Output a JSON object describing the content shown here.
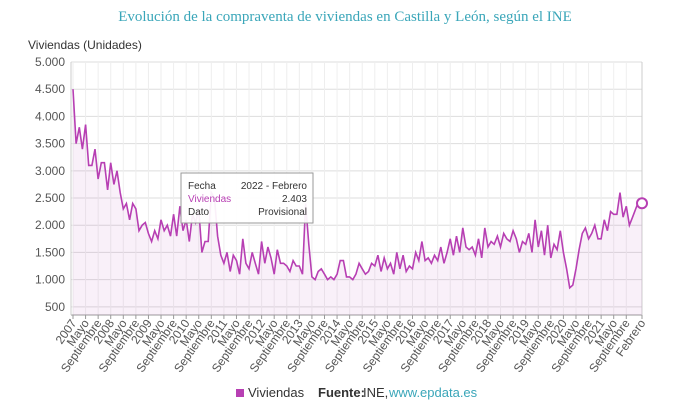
{
  "chart_data": {
    "type": "line",
    "title": "Evolución de la compraventa de viviendas en Castilla y León, según el INE",
    "y_label": "Viviendas (Unidades)",
    "categories": [
      "2007",
      null,
      null,
      null,
      "Mayo",
      null,
      null,
      null,
      "Septiembre",
      null,
      null,
      null,
      "2008",
      null,
      null,
      null,
      "Mayo",
      null,
      null,
      null,
      "Septiembre",
      null,
      null,
      null,
      "2009",
      null,
      null,
      null,
      "Mayo",
      null,
      null,
      null,
      "Septiembre",
      null,
      null,
      null,
      "2010",
      null,
      null,
      null,
      "Mayo",
      null,
      null,
      null,
      "Septiembre",
      null,
      null,
      null,
      "2011",
      null,
      null,
      null,
      "Mayo",
      null,
      null,
      null,
      "Septiembre",
      null,
      null,
      null,
      "2012",
      null,
      null,
      null,
      "Mayo",
      null,
      null,
      null,
      "Septiembre",
      null,
      null,
      null,
      "2013",
      null,
      null,
      null,
      "Mayo",
      null,
      null,
      null,
      "Septiembre",
      null,
      null,
      null,
      "2014",
      null,
      null,
      null,
      "Mayo",
      null,
      null,
      null,
      "Septiembre",
      null,
      null,
      null,
      "2015",
      null,
      null,
      null,
      "Mayo",
      null,
      null,
      null,
      "Septiembre",
      null,
      null,
      null,
      "2016",
      null,
      null,
      null,
      "Mayo",
      null,
      null,
      null,
      "Septiembre",
      null,
      null,
      null,
      "2017",
      null,
      null,
      null,
      "Mayo",
      null,
      null,
      null,
      "Septiembre",
      null,
      null,
      null,
      "2018",
      null,
      null,
      null,
      "Mayo",
      null,
      null,
      null,
      "Septiembre",
      null,
      null,
      null,
      "2019",
      null,
      null,
      null,
      "Mayo",
      null,
      null,
      null,
      "Septiembre",
      null,
      null,
      null,
      "2020",
      null,
      null,
      null,
      "Mayo",
      null,
      null,
      null,
      "Septiembre",
      null,
      null,
      null,
      "2021",
      null,
      null,
      null,
      "Mayo",
      null,
      null,
      null,
      "Septiembre",
      null,
      null,
      null,
      null,
      "Febrero"
    ],
    "series": [
      {
        "name": "Viviendas",
        "color": "#b73fb3",
        "values": [
          4500,
          3500,
          3800,
          3400,
          3850,
          3100,
          3100,
          3400,
          2850,
          3150,
          3150,
          2650,
          3150,
          2750,
          3000,
          2600,
          2300,
          2400,
          2100,
          2400,
          2300,
          1900,
          2000,
          2050,
          1850,
          1700,
          1900,
          1750,
          2100,
          1900,
          2000,
          1800,
          2200,
          1800,
          2350,
          1900,
          2100,
          1700,
          2200,
          2050,
          2300,
          1500,
          1700,
          1700,
          2600,
          2500,
          1800,
          1450,
          1300,
          1500,
          1150,
          1450,
          1350,
          1100,
          1750,
          1300,
          1200,
          1500,
          1300,
          1100,
          1700,
          1300,
          1600,
          1400,
          1100,
          1550,
          1300,
          1300,
          1250,
          1150,
          1350,
          1250,
          1250,
          1100,
          2400,
          1650,
          1050,
          1000,
          1150,
          1200,
          1100,
          1000,
          1050,
          1000,
          1100,
          1350,
          1350,
          1050,
          1050,
          1000,
          1100,
          1300,
          1200,
          1100,
          1150,
          1300,
          1250,
          1450,
          1150,
          1400,
          1200,
          1300,
          1100,
          1500,
          1200,
          1450,
          1150,
          1250,
          1200,
          1500,
          1350,
          1700,
          1350,
          1400,
          1300,
          1450,
          1350,
          1600,
          1300,
          1500,
          1750,
          1450,
          1800,
          1500,
          1950,
          1600,
          1550,
          1600,
          1450,
          1750,
          1400,
          1950,
          1600,
          1700,
          1650,
          1800,
          1600,
          1850,
          1750,
          1700,
          1900,
          1750,
          1500,
          1700,
          1650,
          1850,
          1500,
          2100,
          1600,
          1900,
          1450,
          2000,
          1400,
          1650,
          1550,
          1900,
          1500,
          1200,
          850,
          900,
          1200,
          1550,
          1850,
          1950,
          1750,
          1850,
          2000,
          1750,
          1750,
          2100,
          1900,
          2250,
          2200,
          2200,
          2600,
          2150,
          2350,
          2000,
          2150,
          2300,
          2450,
          2403
        ]
      }
    ],
    "ylim": [
      350,
      5000
    ],
    "yticks": [
      {
        "value": 500,
        "label": "500"
      },
      {
        "value": 1000,
        "label": "1.000"
      },
      {
        "value": 1500,
        "label": "1.500"
      },
      {
        "value": 2000,
        "label": "2.000"
      },
      {
        "value": 2500,
        "label": "2.500"
      },
      {
        "value": 3000,
        "label": "3.000"
      },
      {
        "value": 3500,
        "label": "3.500"
      },
      {
        "value": 4000,
        "label": "4.000"
      },
      {
        "value": 4500,
        "label": "4.500"
      },
      {
        "value": 5000,
        "label": "5.000"
      }
    ],
    "grid": true,
    "tooltip": {
      "rows": [
        [
          "Fecha",
          "2022 - Febrero"
        ],
        [
          "Viviendas",
          "2.403"
        ],
        [
          "Dato",
          "Provisional"
        ]
      ]
    },
    "source": {
      "label": "Fuente:",
      "text": "INE,",
      "link": "www.epdata.es"
    }
  }
}
